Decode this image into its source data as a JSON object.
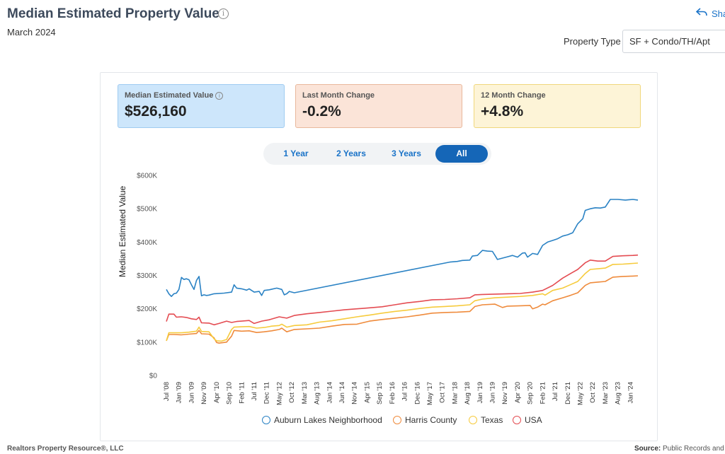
{
  "header": {
    "title": "Median Estimated Property Value",
    "subtitle": "March 2024",
    "share_label": "Sha",
    "property_type_label": "Property Type",
    "property_type_value": "SF + Condo/TH/Apt"
  },
  "cards": [
    {
      "label": "Median Estimated Value",
      "value": "$526,160",
      "color": "#cde6fb"
    },
    {
      "label": "Last Month Change",
      "value": "-0.2%",
      "color": "#fbe4d8"
    },
    {
      "label": "12 Month Change",
      "value": "+4.8%",
      "color": "#fdf4d7"
    }
  ],
  "range_tabs": [
    {
      "label": "1 Year",
      "active": false
    },
    {
      "label": "2 Years",
      "active": false
    },
    {
      "label": "3 Years",
      "active": false
    },
    {
      "label": "All",
      "active": true
    }
  ],
  "footer": {
    "left": "Realtors Property Resource®, LLC",
    "right_label": "Source:",
    "right_text": "Public Records and"
  },
  "chart_data": {
    "type": "line",
    "ylabel": "Median Estimated Value",
    "ylim": [
      0,
      600000
    ],
    "y_ticks": [
      0,
      100000,
      200000,
      300000,
      400000,
      500000,
      600000
    ],
    "y_tick_labels": [
      "$0",
      "$100K",
      "$200K",
      "$300K",
      "$400K",
      "$500K",
      "$600K"
    ],
    "x_tick_labels": [
      "Jul '08",
      "Jan '09",
      "Jun '09",
      "Nov '09",
      "Apr '10",
      "Sep '10",
      "Feb '11",
      "Jul '11",
      "Dec '11",
      "May '12",
      "Oct '12",
      "Mar '13",
      "Aug '13",
      "Jan '14",
      "Jun '14",
      "Nov '14",
      "Apr '15",
      "Sep '15",
      "Feb '16",
      "Jul '16",
      "Dec '16",
      "May '17",
      "Oct '17",
      "Mar '18",
      "Aug '18",
      "Jan '19",
      "Jun '19",
      "Nov '19",
      "Apr '20",
      "Sep '20",
      "Feb '21",
      "Jul '21",
      "Dec '21",
      "May '22",
      "Oct '22",
      "Mar '23",
      "Aug '23",
      "Jan '24"
    ],
    "x_range": [
      "2008-07",
      "2024-03"
    ],
    "grid": false,
    "legend_position": "bottom",
    "series": [
      {
        "name": "Auburn Lakes Neighborhood",
        "color": "#2a82c4",
        "points": [
          [
            "2008-07",
            258000
          ],
          [
            "2008-08",
            245000
          ],
          [
            "2008-09",
            237000
          ],
          [
            "2008-10",
            245000
          ],
          [
            "2008-11",
            247000
          ],
          [
            "2008-12",
            258000
          ],
          [
            "2009-01",
            294000
          ],
          [
            "2009-02",
            288000
          ],
          [
            "2009-03",
            290000
          ],
          [
            "2009-04",
            287000
          ],
          [
            "2009-05",
            272000
          ],
          [
            "2009-06",
            258000
          ],
          [
            "2009-07",
            285000
          ],
          [
            "2009-08",
            297000
          ],
          [
            "2009-09",
            239000
          ],
          [
            "2009-10",
            242000
          ],
          [
            "2009-11",
            240000
          ],
          [
            "2009-12",
            241000
          ],
          [
            "2010-02",
            245000
          ],
          [
            "2010-06",
            247000
          ],
          [
            "2010-09",
            250000
          ],
          [
            "2010-10",
            272000
          ],
          [
            "2010-11",
            262000
          ],
          [
            "2011-01",
            260000
          ],
          [
            "2011-03",
            256000
          ],
          [
            "2011-04",
            260000
          ],
          [
            "2011-06",
            250000
          ],
          [
            "2011-08",
            252000
          ],
          [
            "2011-09",
            240000
          ],
          [
            "2011-10",
            255000
          ],
          [
            "2011-12",
            257000
          ],
          [
            "2012-03",
            262000
          ],
          [
            "2012-05",
            258000
          ],
          [
            "2012-06",
            242000
          ],
          [
            "2012-07",
            245000
          ],
          [
            "2012-08",
            252000
          ],
          [
            "2012-10",
            248000
          ],
          [
            "2017-12",
            340000
          ],
          [
            "2018-03",
            342000
          ],
          [
            "2018-05",
            345000
          ],
          [
            "2018-08",
            346000
          ],
          [
            "2018-09",
            358000
          ],
          [
            "2018-11",
            360000
          ],
          [
            "2019-01",
            375000
          ],
          [
            "2019-03",
            373000
          ],
          [
            "2019-05",
            372000
          ],
          [
            "2019-06",
            360000
          ],
          [
            "2019-07",
            348000
          ],
          [
            "2019-09",
            352000
          ],
          [
            "2019-11",
            356000
          ],
          [
            "2020-01",
            360000
          ],
          [
            "2020-03",
            355000
          ],
          [
            "2020-05",
            367000
          ],
          [
            "2020-06",
            368000
          ],
          [
            "2020-07",
            355000
          ],
          [
            "2020-09",
            366000
          ],
          [
            "2020-11",
            363000
          ],
          [
            "2021-01",
            390000
          ],
          [
            "2021-03",
            400000
          ],
          [
            "2021-05",
            405000
          ],
          [
            "2021-07",
            410000
          ],
          [
            "2021-09",
            418000
          ],
          [
            "2021-11",
            422000
          ],
          [
            "2022-01",
            428000
          ],
          [
            "2022-03",
            455000
          ],
          [
            "2022-05",
            470000
          ],
          [
            "2022-06",
            495000
          ],
          [
            "2022-08",
            500000
          ],
          [
            "2022-10",
            503000
          ],
          [
            "2022-12",
            502000
          ],
          [
            "2023-02",
            505000
          ],
          [
            "2023-04",
            528000
          ],
          [
            "2023-07",
            528000
          ],
          [
            "2023-10",
            526000
          ],
          [
            "2024-01",
            528000
          ],
          [
            "2024-03",
            526000
          ]
        ]
      },
      {
        "name": "Harris County",
        "color": "#ef8b3c",
        "points": [
          [
            "2008-07",
            104000
          ],
          [
            "2008-08",
            123000
          ],
          [
            "2008-10",
            123000
          ],
          [
            "2009-01",
            122000
          ],
          [
            "2009-04",
            124000
          ],
          [
            "2009-07",
            126000
          ],
          [
            "2009-08",
            135000
          ],
          [
            "2009-09",
            125000
          ],
          [
            "2009-12",
            124000
          ],
          [
            "2010-02",
            113000
          ],
          [
            "2010-03",
            99000
          ],
          [
            "2010-04",
            97000
          ],
          [
            "2010-07",
            100000
          ],
          [
            "2010-09",
            118000
          ],
          [
            "2010-10",
            135000
          ],
          [
            "2011-01",
            133000
          ],
          [
            "2011-04",
            134000
          ],
          [
            "2011-07",
            129000
          ],
          [
            "2011-10",
            131000
          ],
          [
            "2012-01",
            134000
          ],
          [
            "2012-04",
            138000
          ],
          [
            "2012-05",
            142000
          ],
          [
            "2012-07",
            131000
          ],
          [
            "2012-10",
            138000
          ],
          [
            "2013-03",
            140000
          ],
          [
            "2013-08",
            142000
          ],
          [
            "2014-01",
            148000
          ],
          [
            "2014-06",
            153000
          ],
          [
            "2014-11",
            154000
          ],
          [
            "2015-04",
            163000
          ],
          [
            "2015-09",
            168000
          ],
          [
            "2016-02",
            172000
          ],
          [
            "2016-07",
            176000
          ],
          [
            "2016-12",
            181000
          ],
          [
            "2017-05",
            187000
          ],
          [
            "2017-10",
            189000
          ],
          [
            "2018-03",
            190000
          ],
          [
            "2018-08",
            192000
          ],
          [
            "2018-10",
            207000
          ],
          [
            "2019-01",
            212000
          ],
          [
            "2019-06",
            214000
          ],
          [
            "2019-09",
            204000
          ],
          [
            "2019-11",
            208000
          ],
          [
            "2020-04",
            209000
          ],
          [
            "2020-08",
            210000
          ],
          [
            "2020-09",
            200000
          ],
          [
            "2020-11",
            205000
          ],
          [
            "2021-01",
            214000
          ],
          [
            "2021-02",
            212000
          ],
          [
            "2021-05",
            224000
          ],
          [
            "2021-09",
            233000
          ],
          [
            "2021-12",
            240000
          ],
          [
            "2022-03",
            248000
          ],
          [
            "2022-06",
            270000
          ],
          [
            "2022-08",
            278000
          ],
          [
            "2022-11",
            280000
          ],
          [
            "2023-02",
            282000
          ],
          [
            "2023-05",
            295000
          ],
          [
            "2023-09",
            297000
          ],
          [
            "2024-01",
            298000
          ],
          [
            "2024-03",
            299000
          ]
        ]
      },
      {
        "name": "Texas",
        "color": "#f6cb3d",
        "points": [
          [
            "2008-07",
            104000
          ],
          [
            "2008-08",
            128000
          ],
          [
            "2008-10",
            128000
          ],
          [
            "2009-01",
            128000
          ],
          [
            "2009-04",
            130000
          ],
          [
            "2009-07",
            133000
          ],
          [
            "2009-08",
            145000
          ],
          [
            "2009-09",
            132000
          ],
          [
            "2009-12",
            131000
          ],
          [
            "2010-02",
            110000
          ],
          [
            "2010-03",
            104000
          ],
          [
            "2010-05",
            103000
          ],
          [
            "2010-07",
            108000
          ],
          [
            "2010-09",
            138000
          ],
          [
            "2010-10",
            145000
          ],
          [
            "2011-01",
            146000
          ],
          [
            "2011-04",
            147000
          ],
          [
            "2011-07",
            142000
          ],
          [
            "2011-10",
            144000
          ],
          [
            "2012-01",
            148000
          ],
          [
            "2012-04",
            150000
          ],
          [
            "2012-05",
            154000
          ],
          [
            "2012-07",
            145000
          ],
          [
            "2012-10",
            150000
          ],
          [
            "2013-03",
            152000
          ],
          [
            "2013-08",
            160000
          ],
          [
            "2014-01",
            164000
          ],
          [
            "2014-06",
            170000
          ],
          [
            "2014-11",
            176000
          ],
          [
            "2015-04",
            181000
          ],
          [
            "2015-09",
            187000
          ],
          [
            "2016-02",
            192000
          ],
          [
            "2016-07",
            196000
          ],
          [
            "2016-12",
            201000
          ],
          [
            "2017-05",
            205000
          ],
          [
            "2017-10",
            207000
          ],
          [
            "2018-03",
            209000
          ],
          [
            "2018-08",
            212000
          ],
          [
            "2018-10",
            224000
          ],
          [
            "2019-01",
            229000
          ],
          [
            "2019-06",
            233000
          ],
          [
            "2019-11",
            235000
          ],
          [
            "2020-04",
            237000
          ],
          [
            "2020-09",
            240000
          ],
          [
            "2021-01",
            245000
          ],
          [
            "2021-02",
            241000
          ],
          [
            "2021-05",
            255000
          ],
          [
            "2021-09",
            262000
          ],
          [
            "2021-12",
            272000
          ],
          [
            "2022-03",
            282000
          ],
          [
            "2022-06",
            306000
          ],
          [
            "2022-08",
            318000
          ],
          [
            "2022-11",
            320000
          ],
          [
            "2023-02",
            322000
          ],
          [
            "2023-05",
            333000
          ],
          [
            "2023-09",
            334000
          ],
          [
            "2024-01",
            336000
          ],
          [
            "2024-03",
            337000
          ]
        ]
      },
      {
        "name": "USA",
        "color": "#e44c52",
        "points": [
          [
            "2008-07",
            162000
          ],
          [
            "2008-08",
            184000
          ],
          [
            "2008-10",
            184000
          ],
          [
            "2008-11",
            175000
          ],
          [
            "2009-01",
            176000
          ],
          [
            "2009-03",
            174000
          ],
          [
            "2009-05",
            170000
          ],
          [
            "2009-07",
            168000
          ],
          [
            "2009-08",
            175000
          ],
          [
            "2009-09",
            158000
          ],
          [
            "2009-12",
            157000
          ],
          [
            "2010-02",
            152000
          ],
          [
            "2010-04",
            156000
          ],
          [
            "2010-07",
            163000
          ],
          [
            "2010-09",
            159000
          ],
          [
            "2010-11",
            162000
          ],
          [
            "2011-01",
            163000
          ],
          [
            "2011-04",
            165000
          ],
          [
            "2011-06",
            156000
          ],
          [
            "2011-09",
            163000
          ],
          [
            "2011-12",
            167000
          ],
          [
            "2012-04",
            176000
          ],
          [
            "2012-07",
            172000
          ],
          [
            "2012-10",
            180000
          ],
          [
            "2013-03",
            185000
          ],
          [
            "2013-08",
            189000
          ],
          [
            "2014-01",
            193000
          ],
          [
            "2014-06",
            197000
          ],
          [
            "2014-11",
            200000
          ],
          [
            "2015-04",
            203000
          ],
          [
            "2015-09",
            206000
          ],
          [
            "2016-02",
            212000
          ],
          [
            "2016-07",
            218000
          ],
          [
            "2016-12",
            222000
          ],
          [
            "2017-05",
            227000
          ],
          [
            "2017-10",
            228000
          ],
          [
            "2018-03",
            230000
          ],
          [
            "2018-08",
            233000
          ],
          [
            "2018-10",
            242000
          ],
          [
            "2019-01",
            243000
          ],
          [
            "2019-06",
            244000
          ],
          [
            "2019-11",
            245000
          ],
          [
            "2020-04",
            246000
          ],
          [
            "2020-09",
            250000
          ],
          [
            "2021-01",
            255000
          ],
          [
            "2021-05",
            270000
          ],
          [
            "2021-09",
            292000
          ],
          [
            "2021-12",
            305000
          ],
          [
            "2022-03",
            318000
          ],
          [
            "2022-06",
            338000
          ],
          [
            "2022-08",
            346000
          ],
          [
            "2022-11",
            343000
          ],
          [
            "2023-02",
            343000
          ],
          [
            "2023-05",
            357000
          ],
          [
            "2023-09",
            359000
          ],
          [
            "2024-01",
            360000
          ],
          [
            "2024-03",
            361000
          ]
        ]
      }
    ]
  }
}
